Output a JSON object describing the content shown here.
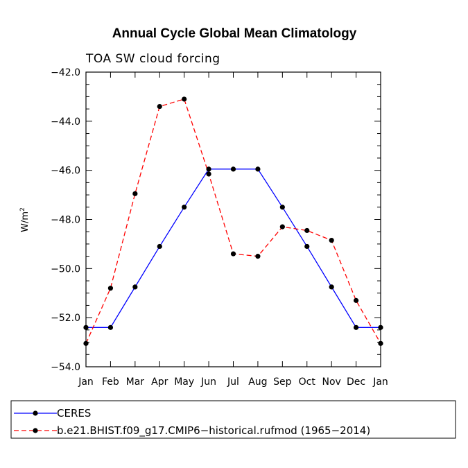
{
  "chart_data": {
    "type": "line",
    "title": "Annual Cycle Global Mean Climatology",
    "subtitle": "TOA SW cloud forcing",
    "xlabel": "",
    "ylabel": "W/m",
    "ylabel_superscript": "2",
    "categories": [
      "Jan",
      "Feb",
      "Mar",
      "Apr",
      "May",
      "Jun",
      "Jul",
      "Aug",
      "Sep",
      "Oct",
      "Nov",
      "Dec",
      "Jan"
    ],
    "ylim": [
      -54.0,
      -42.0
    ],
    "yticks": [
      -42.0,
      -44.0,
      -46.0,
      -48.0,
      -50.0,
      -52.0,
      -54.0
    ],
    "ytick_labels": [
      "−42.0",
      "−44.0",
      "−46.0",
      "−48.0",
      "−50.0",
      "−52.0",
      "−54.0"
    ],
    "series": [
      {
        "name": "CERES",
        "color": "#0000ff",
        "dash": "solid",
        "values": [
          -52.4,
          -52.4,
          -50.75,
          -49.1,
          -47.5,
          -45.95,
          -45.95,
          -45.95,
          -47.5,
          -49.1,
          -50.75,
          -52.4,
          -52.4
        ]
      },
      {
        "name": "b.e21.BHIST.f09_g17.CMIP6−historical.rufmod (1965−2014)",
        "color": "#ff0000",
        "dash": "dashed",
        "values": [
          -53.05,
          -50.8,
          -46.95,
          -43.4,
          -43.1,
          -46.15,
          -49.4,
          -49.5,
          -48.3,
          -48.45,
          -48.85,
          -51.3,
          -53.05
        ]
      }
    ],
    "legend_position": "bottom"
  }
}
